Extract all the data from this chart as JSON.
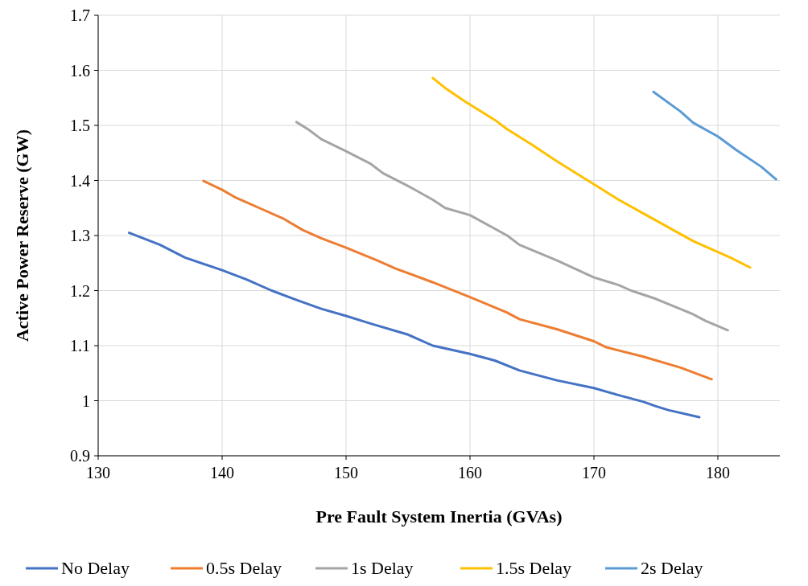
{
  "chart_data": {
    "type": "line",
    "xlabel": "Pre Fault System Inertia (GVAs)",
    "ylabel": "Active Power Reserve (GW)",
    "xlim": [
      130,
      185
    ],
    "xticks": [
      130,
      140,
      150,
      160,
      170,
      180
    ],
    "ylim": [
      0.9,
      1.7
    ],
    "yticks": [
      0.9,
      1,
      1.1,
      1.2,
      1.3,
      1.4,
      1.5,
      1.6,
      1.7
    ],
    "grid": true,
    "legend": "bottom",
    "marker": "none",
    "line_style": "solid",
    "series": [
      {
        "name": "No Delay",
        "color": "#4472c4",
        "x": [
          132.5,
          135,
          137,
          140,
          142,
          144,
          146,
          148,
          150,
          152,
          155,
          157,
          160,
          162,
          164,
          167,
          170,
          172,
          174,
          175,
          176,
          178.5
        ],
        "values": [
          1.305,
          1.283,
          1.26,
          1.237,
          1.22,
          1.2,
          1.183,
          1.167,
          1.154,
          1.14,
          1.12,
          1.1,
          1.085,
          1.073,
          1.055,
          1.037,
          1.023,
          1.01,
          0.998,
          0.99,
          0.983,
          0.97
        ]
      },
      {
        "name": "0.5s Delay",
        "color": "#ed7d31",
        "x": [
          138.5,
          140,
          141,
          143,
          145,
          146.5,
          148,
          150,
          152.5,
          154,
          157,
          160,
          163,
          164,
          167,
          170,
          171,
          174,
          177,
          179.5
        ],
        "values": [
          1.399,
          1.383,
          1.37,
          1.35,
          1.33,
          1.31,
          1.295,
          1.278,
          1.255,
          1.24,
          1.215,
          1.188,
          1.16,
          1.148,
          1.13,
          1.108,
          1.097,
          1.08,
          1.06,
          1.039
        ]
      },
      {
        "name": "1s Delay",
        "color": "#a5a5a5",
        "x": [
          146,
          147,
          148,
          150,
          152,
          153,
          155,
          157,
          158,
          160,
          163,
          164,
          167,
          170,
          172,
          173,
          175,
          178,
          179,
          180.8
        ],
        "values": [
          1.506,
          1.492,
          1.475,
          1.453,
          1.43,
          1.413,
          1.39,
          1.365,
          1.35,
          1.337,
          1.3,
          1.283,
          1.255,
          1.224,
          1.21,
          1.2,
          1.185,
          1.157,
          1.145,
          1.128
        ]
      },
      {
        "name": "1.5s Delay",
        "color": "#ffc000",
        "x": [
          157,
          158,
          159.5,
          162,
          163,
          165,
          167,
          170,
          172,
          174,
          178,
          181,
          182.6
        ],
        "values": [
          1.586,
          1.568,
          1.545,
          1.51,
          1.493,
          1.465,
          1.435,
          1.393,
          1.365,
          1.34,
          1.29,
          1.26,
          1.242
        ]
      },
      {
        "name": "2s Delay",
        "color": "#5b9bd5",
        "x": [
          174.8,
          177,
          178,
          180,
          181.5,
          183.5,
          184.7
        ],
        "values": [
          1.561,
          1.525,
          1.505,
          1.48,
          1.455,
          1.425,
          1.402
        ]
      }
    ]
  }
}
